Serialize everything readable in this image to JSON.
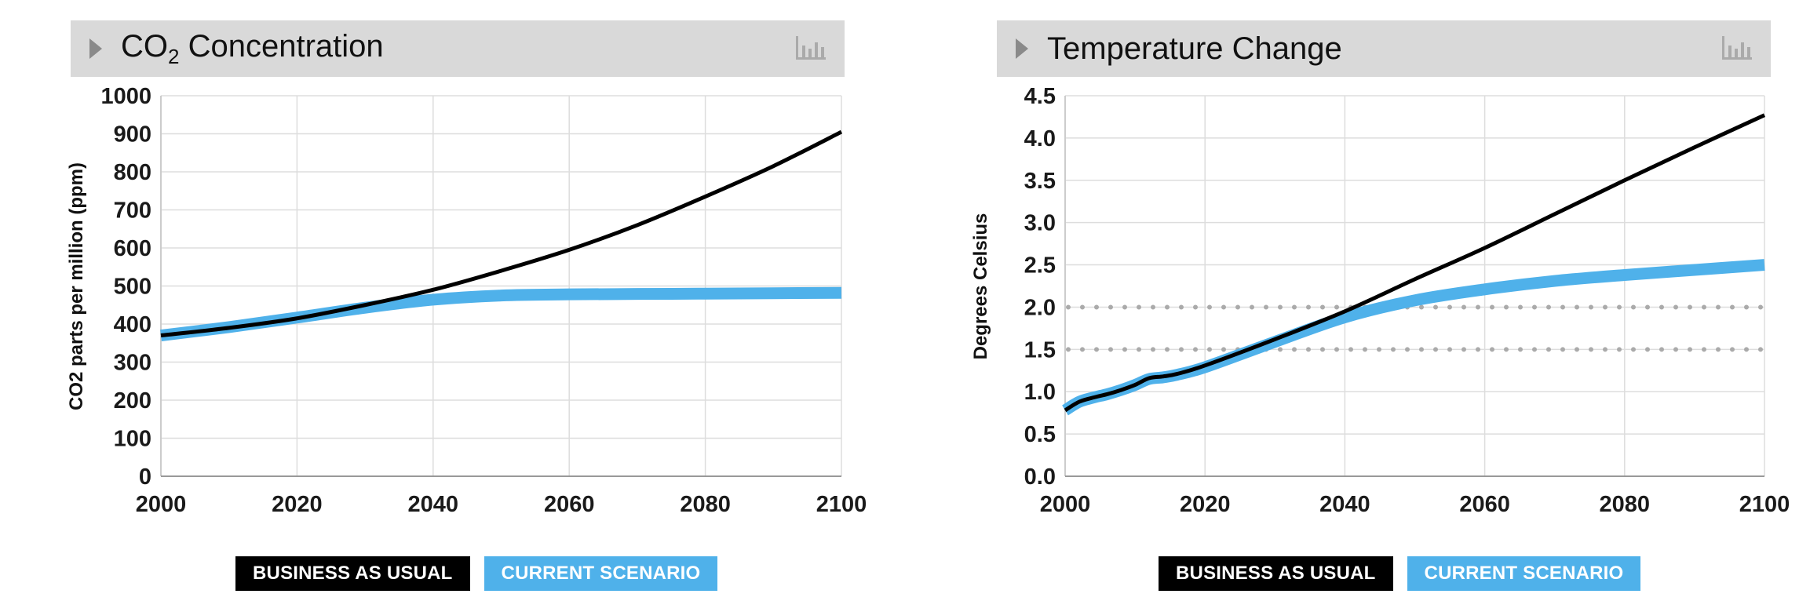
{
  "colors": {
    "bau": "#000000",
    "current": "#4fb1ea",
    "header_bg": "#d9d9d9",
    "grid": "#dddddd",
    "threshold": "#aaaaaa"
  },
  "legend": {
    "bau_label": "BUSINESS AS USUAL",
    "current_label": "CURRENT SCENARIO"
  },
  "chart_data": [
    {
      "type": "line",
      "title_main": "CO",
      "title_sub": "2",
      "title_rest": " Concentration",
      "ylabel": "CO2 parts per million (ppm)",
      "xlim": [
        2000,
        2100
      ],
      "ylim": [
        0,
        1000
      ],
      "x_ticks": [
        "2000",
        "2020",
        "2040",
        "2060",
        "2080",
        "2100"
      ],
      "y_ticks": [
        "0",
        "100",
        "200",
        "300",
        "400",
        "500",
        "600",
        "700",
        "800",
        "900",
        "1000"
      ],
      "grid": true,
      "series": [
        {
          "name": "BUSINESS AS USUAL",
          "color": "#000000",
          "x": [
            2000,
            2010,
            2020,
            2030,
            2040,
            2050,
            2060,
            2070,
            2080,
            2090,
            2100
          ],
          "y": [
            370,
            390,
            415,
            450,
            490,
            540,
            595,
            660,
            735,
            815,
            905
          ]
        },
        {
          "name": "CURRENT SCENARIO",
          "color": "#4fb1ea",
          "x": [
            2000,
            2010,
            2020,
            2030,
            2040,
            2050,
            2060,
            2070,
            2080,
            2090,
            2100
          ],
          "y": [
            370,
            392,
            417,
            443,
            464,
            475,
            478,
            479,
            480,
            481,
            482
          ]
        }
      ]
    },
    {
      "type": "line",
      "title_main": "Temperature Change",
      "title_sub": "",
      "title_rest": "",
      "ylabel": "Degrees Celsius",
      "xlim": [
        2000,
        2100
      ],
      "ylim": [
        0,
        4.5
      ],
      "x_ticks": [
        "2000",
        "2020",
        "2040",
        "2060",
        "2080",
        "2100"
      ],
      "y_ticks": [
        "0.0",
        "0.5",
        "1.0",
        "1.5",
        "2.0",
        "2.5",
        "3.0",
        "3.5",
        "4.0",
        "4.5"
      ],
      "grid": true,
      "thresholds": [
        1.5,
        2.0
      ],
      "series": [
        {
          "name": "BUSINESS AS USUAL",
          "color": "#000000",
          "x": [
            2000,
            2002,
            2004,
            2006,
            2008,
            2010,
            2012,
            2014,
            2016,
            2020,
            2030,
            2040,
            2050,
            2060,
            2070,
            2080,
            2090,
            2100
          ],
          "y": [
            0.78,
            0.88,
            0.93,
            0.97,
            1.02,
            1.08,
            1.16,
            1.18,
            1.21,
            1.31,
            1.62,
            1.95,
            2.33,
            2.7,
            3.1,
            3.5,
            3.89,
            4.27
          ]
        },
        {
          "name": "CURRENT SCENARIO",
          "color": "#4fb1ea",
          "x": [
            2000,
            2002,
            2004,
            2006,
            2008,
            2010,
            2012,
            2014,
            2016,
            2020,
            2030,
            2040,
            2050,
            2060,
            2070,
            2080,
            2090,
            2100
          ],
          "y": [
            0.78,
            0.88,
            0.93,
            0.97,
            1.02,
            1.08,
            1.15,
            1.17,
            1.2,
            1.29,
            1.59,
            1.88,
            2.08,
            2.21,
            2.31,
            2.38,
            2.44,
            2.5
          ]
        }
      ]
    }
  ]
}
